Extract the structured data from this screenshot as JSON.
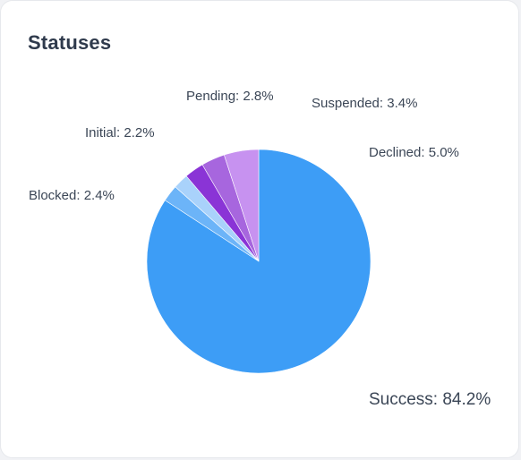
{
  "card": {
    "title": "Statuses"
  },
  "chart_data": {
    "type": "pie",
    "title": "Statuses",
    "start_angle_deg": 0,
    "direction": "clockwise",
    "slices": [
      {
        "label": "Success",
        "value": 84.2,
        "display": "Success: 84.2%",
        "color": "#3d9df6"
      },
      {
        "label": "Blocked",
        "value": 2.4,
        "display": "Blocked: 2.4%",
        "color": "#6cb4f8"
      },
      {
        "label": "Initial",
        "value": 2.2,
        "display": "Initial: 2.2%",
        "color": "#a9d2fb"
      },
      {
        "label": "Pending",
        "value": 2.8,
        "display": "Pending: 2.8%",
        "color": "#8a34d6"
      },
      {
        "label": "Suspended",
        "value": 3.4,
        "display": "Suspended: 3.4%",
        "color": "#a766de"
      },
      {
        "label": "Declined",
        "value": 5.0,
        "display": "Declined: 5.0%",
        "color": "#c792f0"
      }
    ]
  }
}
